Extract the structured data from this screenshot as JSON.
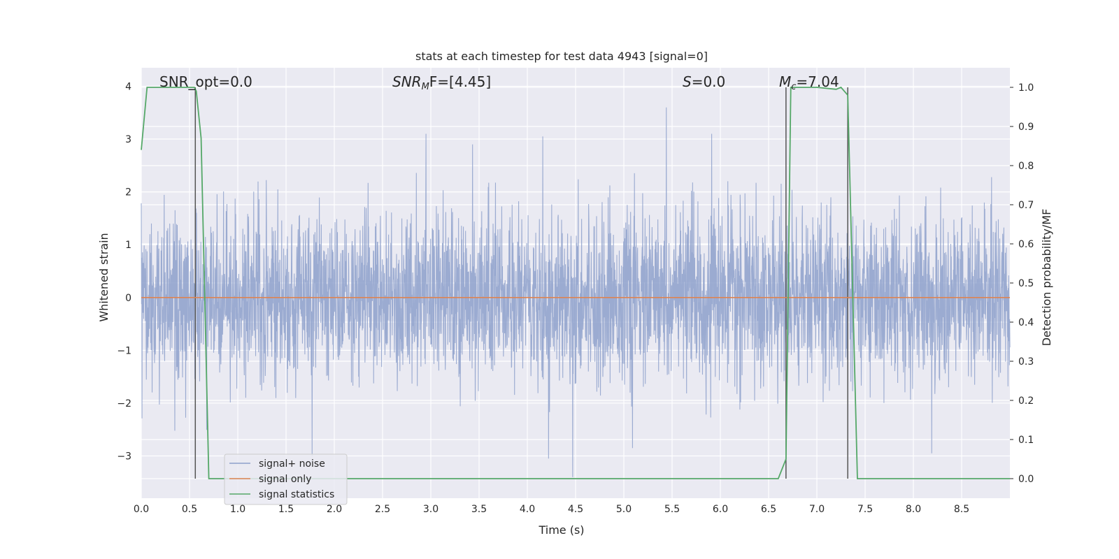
{
  "chart_data": {
    "type": "line",
    "title": "stats at each timestep for test data 4943 [signal=0]",
    "xlabel": "Time (s)",
    "ylabel": "Whitened strain",
    "ylabel_right": "Detection probability/MF",
    "xlim": [
      0.0,
      9.0
    ],
    "ylim": [
      -3.8,
      4.35
    ],
    "ylim_right": [
      -0.05,
      1.05
    ],
    "x_ticks": [
      "0.0",
      "0.5",
      "1.0",
      "1.5",
      "2.0",
      "2.5",
      "3.0",
      "3.5",
      "4.0",
      "4.5",
      "5.0",
      "5.5",
      "6.0",
      "6.5",
      "7.0",
      "7.5",
      "8.0",
      "8.5"
    ],
    "y_ticks": [
      "4",
      "3",
      "2",
      "1",
      "0",
      "−1",
      "−2",
      "−3"
    ],
    "y_right_ticks": [
      "1.0",
      "0.9",
      "0.8",
      "0.7",
      "0.6",
      "0.5",
      "0.4",
      "0.3",
      "0.2",
      "0.1",
      "0.0"
    ],
    "grid": true,
    "legend_position": "lower-left",
    "annotations": {
      "snr_opt": "SNR_opt=0.0",
      "snr_mf_italic": "SNR",
      "snr_mf_sub": "M",
      "snr_mf_rest": "F=[4.45]",
      "s_italic": "S",
      "s_rest": "=0.0",
      "mc_italic": "M",
      "mc_sub": "c",
      "mc_rest": "=7.04"
    },
    "series": [
      {
        "name": "signal+ noise",
        "axis": "left",
        "color": "#8da0cb",
        "envelope_typical": [
          -1.2,
          1.2
        ],
        "noted_peaks": [
          {
            "x": 2.95,
            "y": 3.1
          },
          {
            "x": 4.16,
            "y": 3.05
          },
          {
            "x": 5.44,
            "y": 3.6
          },
          {
            "x": 5.91,
            "y": 3.1
          },
          {
            "x": 4.47,
            "y": -3.4
          },
          {
            "x": 4.22,
            "y": -3.05
          },
          {
            "x": 1.77,
            "y": -3.0
          },
          {
            "x": 5.09,
            "y": -2.85
          },
          {
            "x": 8.19,
            "y": -2.95
          }
        ]
      },
      {
        "name": "signal only",
        "axis": "left",
        "color": "#dd8452",
        "x": [
          0.0,
          9.0
        ],
        "y": [
          0.0,
          0.0
        ]
      },
      {
        "name": "signal statistics",
        "axis": "right",
        "color": "#55a868",
        "x": [
          0.0,
          0.06,
          0.12,
          0.3,
          0.55,
          0.57,
          0.62,
          0.7,
          5.45,
          5.55,
          6.6,
          6.68,
          6.73,
          6.78,
          7.0,
          7.2,
          7.25,
          7.32,
          7.42,
          7.48,
          9.0
        ],
        "y": [
          0.84,
          1.0,
          1.0,
          1.0,
          1.0,
          0.99,
          0.87,
          0.0,
          0.0,
          0.0,
          0.0,
          0.05,
          1.0,
          1.0,
          1.0,
          0.995,
          1.0,
          0.98,
          0.0,
          0.0,
          0.0
        ]
      }
    ],
    "vertical_markers": [
      {
        "x": 0.56,
        "color": "#555555"
      },
      {
        "x": 6.68,
        "color": "#555555"
      },
      {
        "x": 7.32,
        "color": "#555555"
      }
    ],
    "colors": {
      "plot_bg": "#eaeaf2",
      "grid": "#ffffff",
      "text": "#262626"
    }
  }
}
